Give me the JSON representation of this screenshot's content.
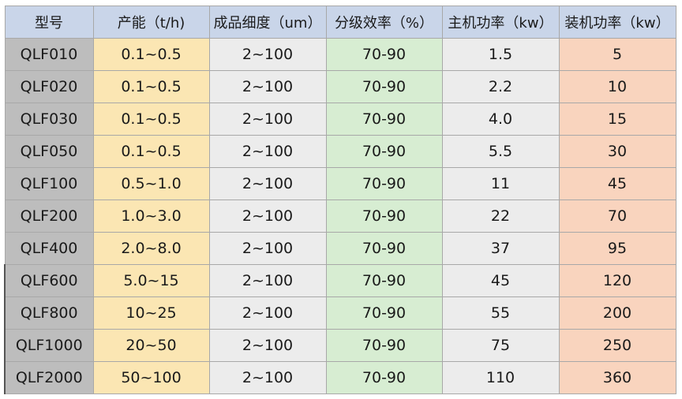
{
  "headers": [
    "型号",
    "产能（t/h)",
    "成品细度（um）",
    "分级效率（%）",
    "主机功率（kw）",
    "装机功率（kw）"
  ],
  "rows": [
    [
      "QLF010",
      "0.1~0.5",
      "2~100",
      "70-90",
      "1.5",
      "5"
    ],
    [
      "QLF020",
      "0.1~0.5",
      "2~100",
      "70-90",
      "2.2",
      "10"
    ],
    [
      "QLF030",
      "0.1~0.5",
      "2~100",
      "70-90",
      "4.0",
      "15"
    ],
    [
      "QLF050",
      "0.1~0.5",
      "2~100",
      "70-90",
      "5.5",
      "30"
    ],
    [
      "QLF100",
      "0.5~1.0",
      "2~100",
      "70-90",
      "11",
      "45"
    ],
    [
      "QLF200",
      "1.0~3.0",
      "2~100",
      "70-90",
      "22",
      "70"
    ],
    [
      "QLF400",
      "2.0~8.0",
      "2~100",
      "70-90",
      "37",
      "95"
    ],
    [
      "QLF600",
      "5.0~15",
      "2~100",
      "70-90",
      "45",
      "120"
    ],
    [
      "QLF800",
      "10~25",
      "2~100",
      "70-90",
      "55",
      "200"
    ],
    [
      "QLF1000",
      "20~50",
      "2~100",
      "70-90",
      "75",
      "250"
    ],
    [
      "QLF2000",
      "50~100",
      "2~100",
      "70-90",
      "110",
      "360"
    ]
  ],
  "colors": {
    "header": "#c9d5e9",
    "model": "#bdbdbd",
    "capacity": "#fbe6b3",
    "fineness": "#ececec",
    "efficiency": "#d7edd2",
    "main_power": "#ececec",
    "installed_power": "#f9d4be"
  }
}
